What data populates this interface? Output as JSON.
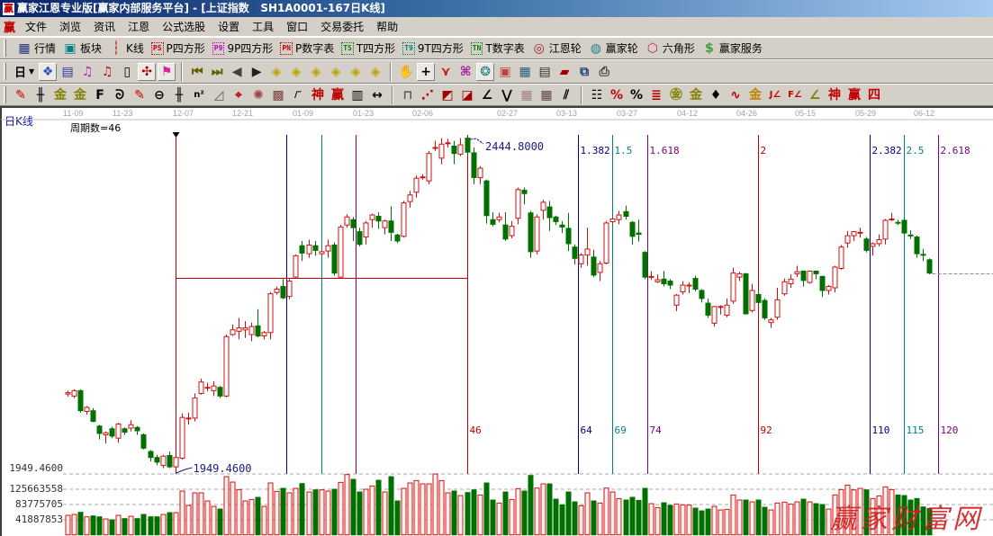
{
  "window": {
    "title": "赢家江恩专业版[赢家内部服务平台] - [上证指数   SH1A0001-167日K线]",
    "logo": "赢"
  },
  "menu": {
    "logo": "赢",
    "items": [
      "文件",
      "浏览",
      "资讯",
      "江恩",
      "公式选股",
      "设置",
      "工具",
      "窗口",
      "交易委托",
      "帮助"
    ]
  },
  "toolbar1": [
    {
      "icon": "quote-table",
      "label": "行情"
    },
    {
      "icon": "sector-blocks",
      "label": "板块"
    },
    {
      "icon": "candlestick",
      "label": "K线"
    },
    {
      "icon": "ps-tag",
      "tag": "PS",
      "label": "P四方形",
      "color": "#c00000"
    },
    {
      "icon": "p9-tag",
      "tag": "P9",
      "label": "9P四方形",
      "color": "#c000c0"
    },
    {
      "icon": "pn-tag",
      "tag": "PN",
      "label": "P数字表",
      "color": "#c00000"
    },
    {
      "icon": "ts-tag",
      "tag": "TS",
      "label": "T四方形",
      "color": "#008000"
    },
    {
      "icon": "t9-tag",
      "tag": "T9",
      "label": "9T四方形",
      "color": "#008080"
    },
    {
      "icon": "tn-tag",
      "tag": "TN",
      "label": "T数字表",
      "color": "#008000"
    },
    {
      "icon": "gann-wheel",
      "label": "江恩轮"
    },
    {
      "icon": "winner-wheel",
      "label": "赢家轮"
    },
    {
      "icon": "hexagon",
      "label": "六角形"
    },
    {
      "icon": "dollar",
      "label": "赢家服务"
    }
  ],
  "toolbar2": {
    "period": "日",
    "groups": [
      [
        "zoom-chart",
        "notes",
        "weekly-3",
        "weekly-9",
        "candle-type",
        "gann-mark",
        "flag"
      ],
      [
        "first",
        "last",
        "left",
        "right",
        "diamond-left",
        "diamond-right",
        "diamond-h",
        "diamond-x",
        "diamond-star",
        "diamond-cross"
      ],
      [
        "hand",
        "crosshair",
        "draw-line",
        "box-tool",
        "brain",
        "calendar",
        "calculator",
        "notepad",
        "save",
        "network",
        "print-setup"
      ]
    ],
    "active": [
      "zoom-chart",
      "gann-mark",
      "flag",
      "crosshair",
      "brain"
    ]
  },
  "toolbar3": {
    "groups": [
      [
        "pencil",
        "parallel",
        "gold-1",
        "gold-2",
        "fib-f",
        "spiral",
        "red-pencil",
        "circle-ruler",
        "grid",
        "n-square",
        "triangle-lines",
        "target",
        "rose",
        "square-grid",
        "angle-lines",
        "shen",
        "ying",
        "comb",
        "width-arrows"
      ],
      [
        "box-line",
        "fan",
        "square-fan",
        "fan-2",
        "fan-3",
        "zigzag",
        "grid-1",
        "grid-2",
        "multi-parallel"
      ],
      [
        "table",
        "percent-red",
        "percent",
        "percent-lines",
        "gold-circle",
        "gold-lines",
        "tool",
        "sine",
        "gold-red",
        "j-angle",
        "f-angle",
        "gold-angle",
        "shen-angle",
        "ying-angle",
        "four-angle"
      ]
    ]
  },
  "chart": {
    "k_type": "日K线",
    "cycle_count": "周期数=46",
    "dates": [
      "11-09",
      "11-23",
      "12-07",
      "12-21",
      "01-09",
      "01-23",
      "02-06",
      "02-27",
      "03-13",
      "03-27",
      "04-12",
      "04-26",
      "05-15",
      "05-29",
      "06-12"
    ],
    "price_label": "1949.4600",
    "volume_labels": [
      "125663558",
      "83775705",
      "41887853"
    ],
    "high_label": "2444.8000",
    "low_label": "1949.4600",
    "watermark": "赢家财富网"
  },
  "chart_data": {
    "type": "candlestick",
    "ylim": [
      1949.46,
      2444.8
    ],
    "volume_ticks": [
      125663558,
      83775705,
      41887853
    ],
    "colors": {
      "up": "#d01010",
      "down": "#007000"
    },
    "low_index": 17,
    "base_period": 46,
    "cycle_lines": [
      {
        "ratio": 0,
        "color": "#c00000"
      },
      {
        "ratio": 0.382,
        "color": "#000080"
      },
      {
        "ratio": 0.5,
        "color": "#008080"
      },
      {
        "ratio": 0.618,
        "color": "#800080"
      },
      {
        "ratio": 1,
        "color": "#c00000",
        "period": "46"
      },
      {
        "ratio": 1.382,
        "color": "#000080",
        "label": "1.382",
        "period": "64"
      },
      {
        "ratio": 1.5,
        "color": "#008080",
        "label": "1.5",
        "period": "69"
      },
      {
        "ratio": 1.618,
        "color": "#800080",
        "label": "1.618",
        "period": "74"
      },
      {
        "ratio": 2,
        "color": "#c00000",
        "label": "2",
        "period": "92"
      },
      {
        "ratio": 2.382,
        "color": "#000080",
        "label": "2.382",
        "period": "110"
      },
      {
        "ratio": 2.5,
        "color": "#008080",
        "label": "2.5",
        "period": "115"
      },
      {
        "ratio": 2.618,
        "color": "#800080",
        "label": "2.618",
        "period": "120"
      }
    ],
    "ohlc": [
      [
        2061,
        2066,
        2057,
        2063
      ],
      [
        2058,
        2068,
        2055,
        2066
      ],
      [
        2066,
        2068,
        2033,
        2036
      ],
      [
        2035,
        2043,
        2030,
        2041
      ],
      [
        2036,
        2040,
        2019,
        2020
      ],
      [
        2013,
        2015,
        1993,
        2002
      ],
      [
        2000,
        2005,
        1987,
        2003
      ],
      [
        2009,
        2012,
        1995,
        1998
      ],
      [
        1995,
        2018,
        1988,
        2016
      ],
      [
        2009,
        2011,
        2000,
        2004
      ],
      [
        2010,
        2022,
        2005,
        2015
      ],
      [
        2011,
        2013,
        2000,
        2006
      ],
      [
        2000,
        2002,
        1978,
        1980
      ],
      [
        1975,
        1977,
        1960,
        1966
      ],
      [
        1966,
        1970,
        1955,
        1959
      ],
      [
        1954,
        1970,
        1950,
        1968
      ],
      [
        1969,
        1975,
        1950,
        1952
      ],
      [
        1952,
        1968,
        1949.46,
        1966
      ],
      [
        1965,
        2032,
        1963,
        2026
      ],
      [
        2025,
        2033,
        2015,
        2025
      ],
      [
        2025,
        2062,
        2020,
        2055
      ],
      [
        2062,
        2084,
        2060,
        2079
      ],
      [
        2070,
        2078,
        2065,
        2071
      ],
      [
        2066,
        2080,
        2058,
        2073
      ],
      [
        2071,
        2073,
        2055,
        2058
      ],
      [
        2058,
        2150,
        2056,
        2147
      ],
      [
        2150,
        2165,
        2148,
        2157
      ],
      [
        2155,
        2175,
        2143,
        2160
      ],
      [
        2157,
        2170,
        2145,
        2160
      ],
      [
        2150,
        2168,
        2140,
        2162
      ],
      [
        2163,
        2188,
        2146,
        2148
      ],
      [
        2148,
        2155,
        2143,
        2153
      ],
      [
        2153,
        2214,
        2143,
        2211
      ],
      [
        2213,
        2222,
        2210,
        2218
      ],
      [
        2222,
        2233,
        2203,
        2205
      ],
      [
        2207,
        2233,
        2203,
        2230
      ],
      [
        2236,
        2270,
        2235,
        2268
      ],
      [
        2283,
        2290,
        2260,
        2272
      ],
      [
        2271,
        2292,
        2265,
        2284
      ],
      [
        2283,
        2290,
        2268,
        2276
      ],
      [
        2271,
        2276,
        2268,
        2274
      ],
      [
        2275,
        2292,
        2265,
        2283
      ],
      [
        2284,
        2288,
        2238,
        2242
      ],
      [
        2236,
        2314,
        2235,
        2311
      ],
      [
        2314,
        2330,
        2310,
        2326
      ],
      [
        2322,
        2326,
        2290,
        2310
      ],
      [
        2304,
        2310,
        2282,
        2285
      ],
      [
        2296,
        2320,
        2285,
        2317
      ],
      [
        2322,
        2331,
        2310,
        2329
      ],
      [
        2327,
        2333,
        2308,
        2320
      ],
      [
        2310,
        2322,
        2300,
        2320
      ],
      [
        2320,
        2342,
        2290,
        2303
      ],
      [
        2299,
        2301,
        2287,
        2290
      ],
      [
        2297,
        2350,
        2295,
        2347
      ],
      [
        2349,
        2365,
        2340,
        2359
      ],
      [
        2363,
        2388,
        2355,
        2384
      ],
      [
        2385,
        2390,
        2382,
        2386
      ],
      [
        2380,
        2425,
        2375,
        2421
      ],
      [
        2429,
        2440,
        2425,
        2430
      ],
      [
        2414,
        2444,
        2405,
        2435
      ],
      [
        2436,
        2443,
        2430,
        2437
      ],
      [
        2432,
        2440,
        2405,
        2421
      ],
      [
        2420,
        2444,
        2417,
        2434
      ],
      [
        2444,
        2444.8,
        2418,
        2423
      ],
      [
        2422,
        2430,
        2375,
        2385
      ],
      [
        2385,
        2402,
        2375,
        2399
      ],
      [
        2380,
        2382,
        2316,
        2328
      ],
      [
        2322,
        2333,
        2312,
        2315
      ],
      [
        2322,
        2332,
        2318,
        2326
      ],
      [
        2314,
        2333,
        2290,
        2293
      ],
      [
        2298,
        2320,
        2294,
        2312
      ],
      [
        2324,
        2370,
        2315,
        2367
      ],
      [
        2366,
        2370,
        2345,
        2361
      ],
      [
        2332,
        2335,
        2265,
        2274
      ],
      [
        2275,
        2330,
        2270,
        2326
      ],
      [
        2336,
        2352,
        2322,
        2348
      ],
      [
        2341,
        2350,
        2305,
        2325
      ],
      [
        2326,
        2328,
        2314,
        2319
      ],
      [
        2314,
        2320,
        2302,
        2311
      ],
      [
        2309,
        2332,
        2275,
        2286
      ],
      [
        2281,
        2285,
        2255,
        2264
      ],
      [
        2256,
        2272,
        2250,
        2269
      ],
      [
        2269,
        2310,
        2253,
        2278
      ],
      [
        2266,
        2277,
        2236,
        2239
      ],
      [
        2243,
        2260,
        2230,
        2256
      ],
      [
        2257,
        2320,
        2255,
        2317
      ],
      [
        2319,
        2325,
        2317,
        2323
      ],
      [
        2322,
        2335,
        2315,
        2329
      ],
      [
        2334,
        2343,
        2322,
        2327
      ],
      [
        2318,
        2320,
        2285,
        2297
      ],
      [
        2302,
        2322,
        2289,
        2300
      ],
      [
        2273,
        2275,
        2233,
        2236
      ],
      [
        2237,
        2245,
        2232,
        2237
      ],
      [
        2229,
        2240,
        2227,
        2232
      ],
      [
        2233,
        2245,
        2222,
        2226
      ],
      [
        2230,
        2233,
        2218,
        2224
      ],
      [
        2194,
        2211,
        2185,
        2209
      ],
      [
        2214,
        2230,
        2210,
        2224
      ],
      [
        2224,
        2228,
        2212,
        2224
      ],
      [
        2234,
        2238,
        2215,
        2218
      ],
      [
        2216,
        2218,
        2198,
        2204
      ],
      [
        2197,
        2204,
        2175,
        2179
      ],
      [
        2167,
        2193,
        2162,
        2192
      ],
      [
        2192,
        2194,
        2180,
        2192
      ],
      [
        2179,
        2204,
        2176,
        2194
      ],
      [
        2200,
        2250,
        2196,
        2242
      ],
      [
        2236,
        2244,
        2230,
        2241
      ],
      [
        2241,
        2242,
        2180,
        2181
      ],
      [
        2186,
        2226,
        2183,
        2216
      ],
      [
        2210,
        2214,
        2195,
        2198
      ],
      [
        2201,
        2204,
        2172,
        2175
      ],
      [
        2168,
        2175,
        2160,
        2172
      ],
      [
        2176,
        2220,
        2172,
        2202
      ],
      [
        2211,
        2234,
        2208,
        2229
      ],
      [
        2226,
        2240,
        2220,
        2233
      ],
      [
        2241,
        2253,
        2236,
        2244
      ],
      [
        2245,
        2246,
        2222,
        2231
      ],
      [
        2228,
        2246,
        2226,
        2245
      ],
      [
        2245,
        2246,
        2233,
        2241
      ],
      [
        2237,
        2238,
        2206,
        2216
      ],
      [
        2216,
        2224,
        2210,
        2222
      ],
      [
        2220,
        2253,
        2213,
        2251
      ],
      [
        2249,
        2284,
        2247,
        2281
      ],
      [
        2287,
        2305,
        2280,
        2298
      ],
      [
        2298,
        2305,
        2290,
        2304
      ],
      [
        2303,
        2310,
        2295,
        2303
      ],
      [
        2293,
        2296,
        2273,
        2276
      ],
      [
        2282,
        2288,
        2268,
        2286
      ],
      [
        2286,
        2300,
        2282,
        2292
      ],
      [
        2293,
        2323,
        2285,
        2321
      ],
      [
        2323,
        2332,
        2320,
        2323
      ],
      [
        2318,
        2322,
        2314,
        2317
      ],
      [
        2321,
        2323,
        2300,
        2302
      ],
      [
        2299,
        2306,
        2293,
        2298
      ],
      [
        2296,
        2298,
        2265,
        2271
      ],
      [
        2270,
        2278,
        2260,
        2269
      ],
      [
        2262,
        2264,
        2240,
        2242
      ]
    ],
    "volume": [
      53400000.0,
      55800000.0,
      61600000.0,
      49300000.0,
      51700000.0,
      49300000.0,
      43500000.0,
      41100000.0,
      53400000.0,
      44400000.0,
      50900000.0,
      44400000.0,
      55800000.0,
      49300000.0,
      49300000.0,
      55800000.0,
      60800000.0,
      60800000.0,
      119900000.0,
      80500000.0,
      115000000.0,
      115000000.0,
      92800000.0,
      78000000.0,
      70600000.0,
      159300000.0,
      144500000.0,
      124000000.0,
      92800000.0,
      96900000.0,
      102700000.0,
      78000000.0,
      142100000.0,
      119100000.0,
      127300000.0,
      115000000.0,
      127300000.0,
      140400000.0,
      117400000.0,
      123200000.0,
      123200000.0,
      119900000.0,
      124800000.0,
      143700000.0,
      165100000.0,
      151900000.0,
      117400000.0,
      124800000.0,
      133900000.0,
      149500000.0,
      117400000.0,
      159300000.0,
      92800000.0,
      127300000.0,
      142100000.0,
      148700000.0,
      139600000.0,
      139600000.0,
      166700000.0,
      148700000.0,
      115000000.0,
      119900000.0,
      107600000.0,
      115800000.0,
      123200000.0,
      109200000.0,
      142100000.0,
      95300000.0,
      87100000.0,
      117400000.0,
      96900000.0,
      126500000.0,
      119900000.0,
      162600000.0,
      128100000.0,
      139600000.0,
      139600000.0,
      97700000.0,
      82100000.0,
      117400000.0,
      90300000.0,
      79700000.0,
      115000000.0,
      92800000.0,
      87100000.0,
      128100000.0,
      117400000.0,
      99400000.0,
      95300000.0,
      102700000.0,
      94400000.0,
      127300000.0,
      85400000.0,
      74700000.0,
      87900000.0,
      80500000.0,
      84600000.0,
      82100000.0,
      81300000.0,
      73100000.0,
      65700000.0,
      70600000.0,
      78000000.0,
      68200000.0,
      69800000.0,
      109200000.0,
      95300000.0,
      95300000.0,
      90300000.0,
      95300000.0,
      75600000.0,
      68200000.0,
      87100000.0,
      89500000.0,
      84600000.0,
      90300000.0,
      97700000.0,
      90300000.0,
      85400000.0,
      83000000.0,
      70600000.0,
      109200000.0,
      124000000.0,
      136300000.0,
      123200000.0,
      127300000.0,
      123200000.0,
      99400000.0,
      106800000.0,
      131400000.0,
      124000000.0,
      109200000.0,
      107600000.0,
      95300000.0,
      99400000.0,
      76400000.0,
      72300000.0
    ]
  }
}
